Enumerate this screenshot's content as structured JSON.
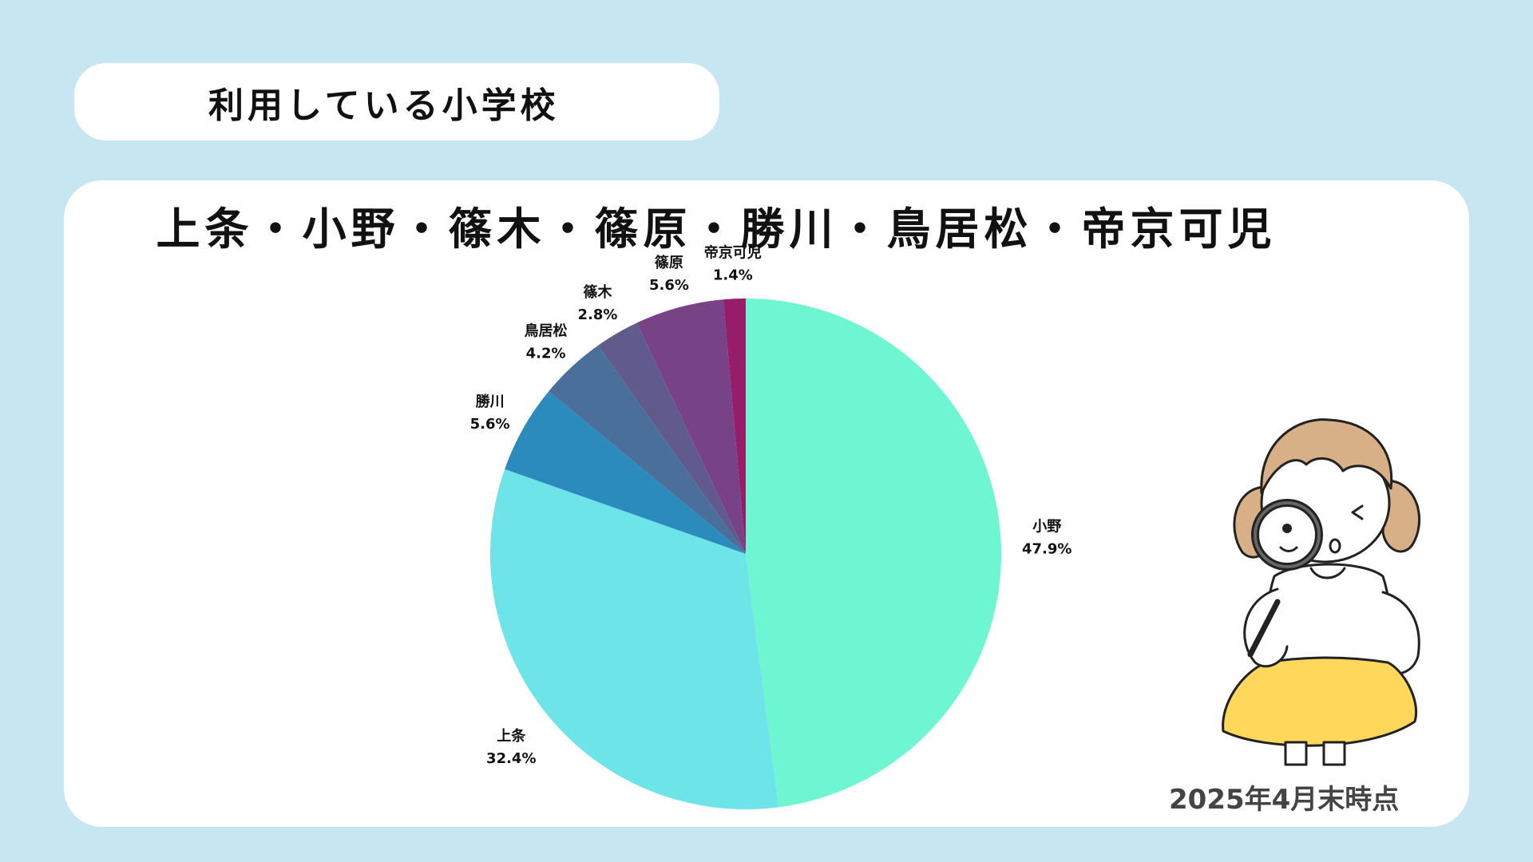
{
  "header": {
    "title": "利用している小学校"
  },
  "card": {
    "schools_line": "上条・小野・篠木・篠原・勝川・鳥居松・帝京可児",
    "date_note": "2025年4月末時点"
  },
  "chart_data": {
    "type": "pie",
    "title": "",
    "start_angle": "12 o'clock, clockwise",
    "slices": [
      {
        "label": "小野",
        "value": 47.9,
        "value_label": "47.9%",
        "color": "#6ef5d2"
      },
      {
        "label": "上条",
        "value": 32.4,
        "value_label": "32.4%",
        "color": "#6de5e8"
      },
      {
        "label": "勝川",
        "value": 5.6,
        "value_label": "5.6%",
        "color": "#2c8bbd"
      },
      {
        "label": "鳥居松",
        "value": 4.2,
        "value_label": "4.2%",
        "color": "#4a6f9b"
      },
      {
        "label": "篠木",
        "value": 2.8,
        "value_label": "2.8%",
        "color": "#615a8c"
      },
      {
        "label": "篠原",
        "value": 5.6,
        "value_label": "5.6%",
        "color": "#784286"
      },
      {
        "label": "帝京可児",
        "value": 1.4,
        "value_label": "1.4%",
        "color": "#951d6a"
      }
    ]
  },
  "illustration": {
    "icon": "girl-with-magnifying-glass-icon",
    "skirt_color": "#ffd75a",
    "hair_color": "#d8b087"
  }
}
